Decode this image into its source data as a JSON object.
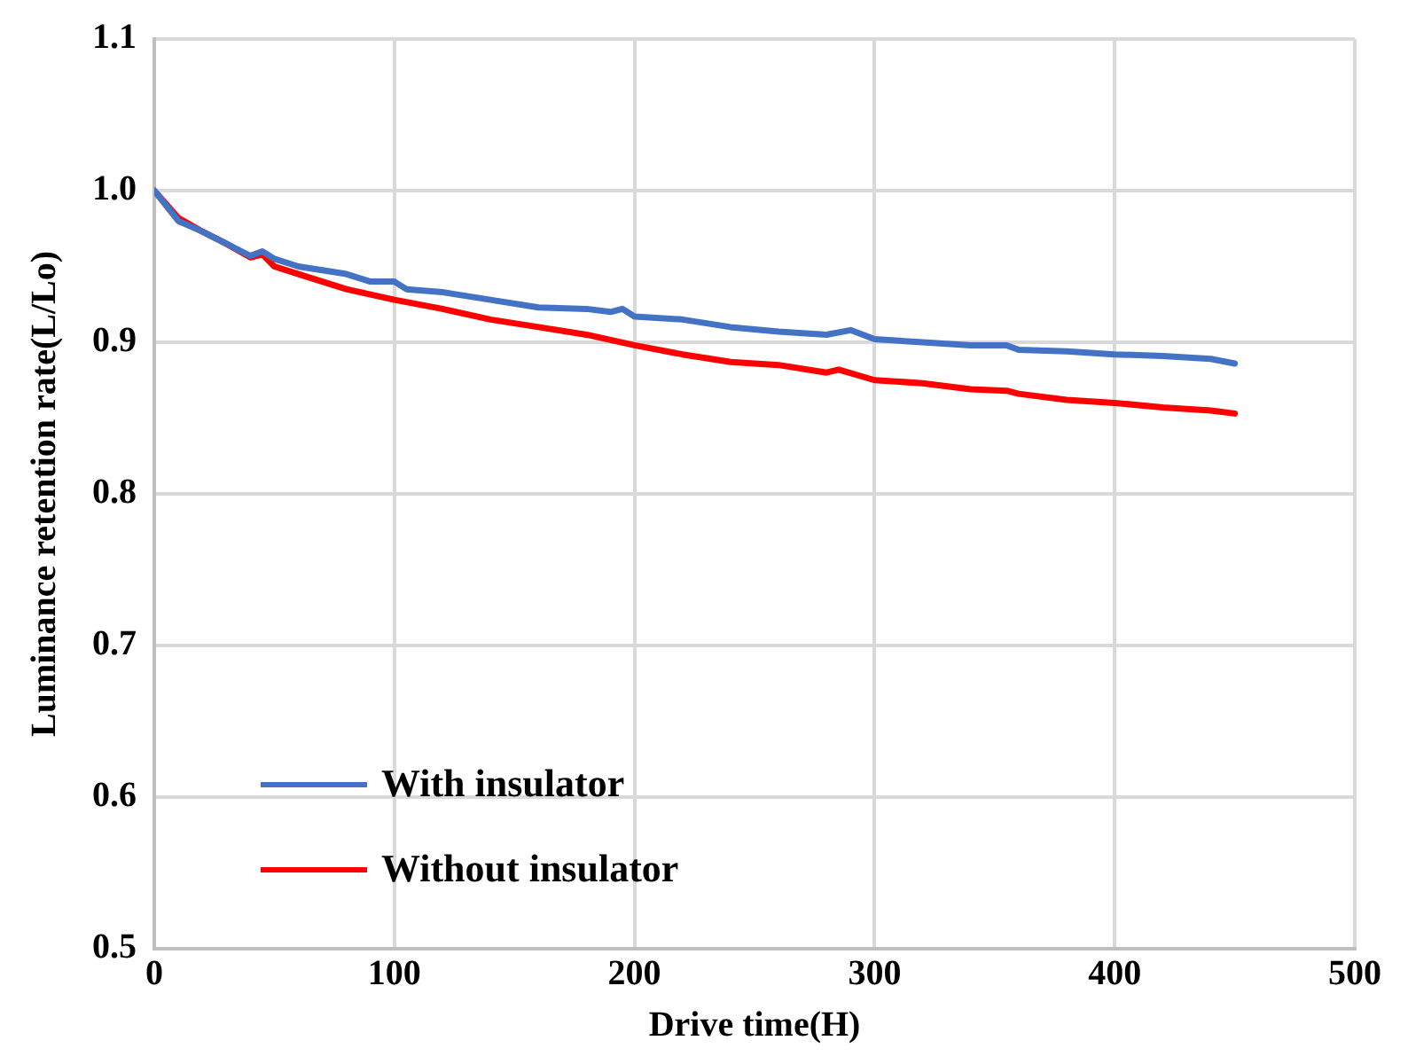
{
  "chart_data": {
    "type": "line",
    "xlabel": "Drive time(H)",
    "ylabel": "Luminance retention rate(L/Lo)",
    "xlim": [
      0,
      500
    ],
    "xticks": [
      0,
      100,
      200,
      300,
      400,
      500
    ],
    "ylim": [
      0.5,
      1.1
    ],
    "yticks": [
      0.5,
      0.6,
      0.7,
      0.8,
      0.9,
      {
        "value": 1,
        "label": "1.0"
      },
      1.1
    ],
    "grid": true,
    "legend": "bottom left",
    "marker": "none",
    "line_style": "solid",
    "series": [
      {
        "name": "With insulator",
        "color": "#4472c4",
        "x": [
          0,
          10,
          20,
          30,
          40,
          45,
          50,
          60,
          80,
          90,
          100,
          105,
          120,
          140,
          160,
          180,
          190,
          195,
          200,
          220,
          240,
          260,
          280,
          290,
          300,
          320,
          340,
          355,
          360,
          380,
          400,
          420,
          440,
          450
        ],
        "values": [
          1.0,
          0.98,
          0.973,
          0.965,
          0.957,
          0.96,
          0.955,
          0.95,
          0.945,
          0.94,
          0.94,
          0.935,
          0.933,
          0.928,
          0.923,
          0.922,
          0.92,
          0.922,
          0.917,
          0.915,
          0.91,
          0.907,
          0.905,
          0.908,
          0.902,
          0.9,
          0.898,
          0.898,
          0.895,
          0.894,
          0.892,
          0.891,
          0.889,
          0.886
        ]
      },
      {
        "name": "Without insulator",
        "color": "#ff0000",
        "x": [
          0,
          10,
          20,
          30,
          40,
          45,
          50,
          60,
          80,
          100,
          120,
          140,
          160,
          180,
          200,
          220,
          240,
          260,
          280,
          285,
          300,
          320,
          340,
          355,
          360,
          380,
          400,
          420,
          440,
          450
        ],
        "values": [
          1.0,
          0.982,
          0.973,
          0.965,
          0.956,
          0.958,
          0.95,
          0.945,
          0.935,
          0.928,
          0.922,
          0.915,
          0.91,
          0.905,
          0.898,
          0.892,
          0.887,
          0.885,
          0.88,
          0.882,
          0.875,
          0.873,
          0.869,
          0.868,
          0.866,
          0.862,
          0.86,
          0.857,
          0.855,
          0.853
        ]
      }
    ]
  }
}
